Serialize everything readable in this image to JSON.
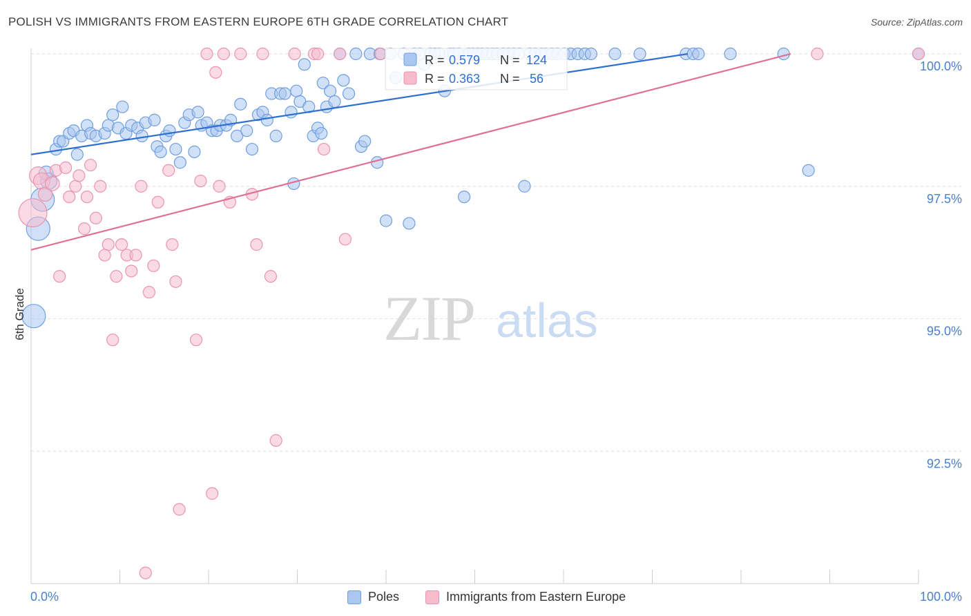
{
  "title": "POLISH VS IMMIGRANTS FROM EASTERN EUROPE 6TH GRADE CORRELATION CHART",
  "source": "Source: ZipAtlas.com",
  "watermark": {
    "zip": "ZIP",
    "atlas": "atlas"
  },
  "colors": {
    "blue_fill": "#a9c7f0",
    "blue_stroke": "#6f9ee0",
    "blue_line": "#2f6fd0",
    "pink_fill": "#f6bccd",
    "pink_stroke": "#ec93ad",
    "pink_line": "#e06f96",
    "tick_label": "#4a7fd0",
    "grid": "#dddddd"
  },
  "stats_legend": [
    {
      "r_label": "R =",
      "r_value": "0.579",
      "n_label": "N =",
      "n_value": "124"
    },
    {
      "r_label": "R =",
      "r_value": "0.363",
      "n_label": "N =",
      "n_value": " 56"
    }
  ],
  "chart_data": {
    "type": "scatter",
    "title": "POLISH VS IMMIGRANTS FROM EASTERN EUROPE 6TH GRADE CORRELATION CHART",
    "xlabel": "",
    "ylabel": "6th Grade",
    "xlim": [
      0,
      100
    ],
    "ylim": [
      90.0,
      100.2
    ],
    "x_tick_labels": [
      "0.0%",
      "100.0%"
    ],
    "y_ticks": [
      92.5,
      95.0,
      97.5,
      100.0
    ],
    "y_tick_labels": [
      "92.5%",
      "95.0%",
      "97.5%",
      "100.0%"
    ],
    "grid": "horizontal dashed",
    "legend_position": "top-center",
    "series": [
      {
        "name": "Poles",
        "trend": [
          [
            0,
            98.1
          ],
          [
            74,
            100.0
          ]
        ],
        "points": [
          [
            0.3,
            95.05,
            2
          ],
          [
            0.8,
            96.7,
            2
          ],
          [
            1.3,
            97.25,
            2
          ],
          [
            2.0,
            97.6,
            1.4
          ],
          [
            1.7,
            97.75,
            1.2
          ],
          [
            2.8,
            98.2,
            1
          ],
          [
            3.2,
            98.35,
            1
          ],
          [
            3.6,
            98.35,
            1
          ],
          [
            4.3,
            98.5,
            1
          ],
          [
            4.8,
            98.55,
            1
          ],
          [
            5.2,
            98.1,
            1
          ],
          [
            5.7,
            98.45,
            1
          ],
          [
            6.3,
            98.65,
            1
          ],
          [
            6.7,
            98.5,
            1
          ],
          [
            7.3,
            98.45,
            1
          ],
          [
            8.3,
            98.5,
            1
          ],
          [
            8.7,
            98.65,
            1
          ],
          [
            9.2,
            98.85,
            1
          ],
          [
            9.8,
            98.6,
            1
          ],
          [
            10.3,
            99.0,
            1
          ],
          [
            10.7,
            98.5,
            1
          ],
          [
            11.3,
            98.65,
            1
          ],
          [
            12.0,
            98.6,
            1
          ],
          [
            12.5,
            98.45,
            1
          ],
          [
            12.9,
            98.7,
            1
          ],
          [
            13.9,
            98.75,
            1
          ],
          [
            14.2,
            98.25,
            1
          ],
          [
            14.6,
            98.15,
            1
          ],
          [
            15.2,
            98.45,
            1
          ],
          [
            15.6,
            98.55,
            1
          ],
          [
            16.3,
            98.2,
            1
          ],
          [
            16.8,
            97.95,
            1
          ],
          [
            17.3,
            98.7,
            1
          ],
          [
            17.8,
            98.85,
            1
          ],
          [
            18.4,
            98.15,
            1
          ],
          [
            18.8,
            98.9,
            1
          ],
          [
            19.2,
            98.65,
            1
          ],
          [
            19.8,
            98.7,
            1
          ],
          [
            20.4,
            98.55,
            1
          ],
          [
            20.9,
            98.55,
            1
          ],
          [
            21.3,
            98.65,
            1
          ],
          [
            22.0,
            98.65,
            1
          ],
          [
            22.5,
            98.75,
            1
          ],
          [
            23.2,
            98.45,
            1
          ],
          [
            23.6,
            99.05,
            1
          ],
          [
            24.3,
            98.55,
            1
          ],
          [
            24.9,
            98.2,
            1
          ],
          [
            25.6,
            98.85,
            1
          ],
          [
            26.1,
            98.9,
            1
          ],
          [
            26.6,
            98.75,
            1
          ],
          [
            27.1,
            99.25,
            1
          ],
          [
            27.6,
            98.45,
            1
          ],
          [
            28.1,
            99.25,
            1
          ],
          [
            28.6,
            99.25,
            1
          ],
          [
            29.3,
            98.9,
            1
          ],
          [
            29.6,
            97.55,
            1
          ],
          [
            29.9,
            99.3,
            1
          ],
          [
            30.3,
            99.1,
            1
          ],
          [
            30.8,
            99.8,
            1
          ],
          [
            31.3,
            99.0,
            1
          ],
          [
            31.8,
            98.45,
            1
          ],
          [
            32.3,
            98.6,
            1
          ],
          [
            32.7,
            98.5,
            1
          ],
          [
            32.9,
            99.45,
            1
          ],
          [
            33.3,
            99.0,
            1
          ],
          [
            33.7,
            99.3,
            1
          ],
          [
            34.2,
            99.1,
            1
          ],
          [
            34.8,
            100.0,
            1
          ],
          [
            35.2,
            99.5,
            1
          ],
          [
            35.8,
            99.25,
            1
          ],
          [
            36.6,
            100.0,
            1
          ],
          [
            37.2,
            98.25,
            1
          ],
          [
            37.6,
            98.35,
            1
          ],
          [
            38.2,
            100.0,
            1
          ],
          [
            39.0,
            97.95,
            1
          ],
          [
            39.3,
            100.0,
            1
          ],
          [
            40.0,
            96.85,
            1
          ],
          [
            40.5,
            100.0,
            1
          ],
          [
            41.1,
            99.55,
            1
          ],
          [
            42.0,
            100.0,
            1
          ],
          [
            42.6,
            96.8,
            1
          ],
          [
            43.2,
            100.0,
            1
          ],
          [
            43.8,
            100.0,
            1
          ],
          [
            44.3,
            99.8,
            1
          ],
          [
            45.0,
            100.0,
            1
          ],
          [
            45.5,
            100.0,
            1
          ],
          [
            46.0,
            100.0,
            1
          ],
          [
            46.6,
            99.3,
            1
          ],
          [
            47.2,
            100.0,
            1
          ],
          [
            47.6,
            100.0,
            1
          ],
          [
            48.2,
            100.0,
            1
          ],
          [
            48.8,
            97.3,
            1
          ],
          [
            49.3,
            100.0,
            1
          ],
          [
            49.8,
            100.0,
            1
          ],
          [
            50.3,
            100.0,
            1
          ],
          [
            50.8,
            100.0,
            1
          ],
          [
            51.4,
            100.0,
            1
          ],
          [
            52.0,
            100.0,
            1
          ],
          [
            52.5,
            100.0,
            1
          ],
          [
            53.2,
            100.0,
            1
          ],
          [
            53.8,
            100.0,
            1
          ],
          [
            54.4,
            100.0,
            1
          ],
          [
            55.0,
            100.0,
            1
          ],
          [
            55.6,
            97.5,
            1
          ],
          [
            56.2,
            100.0,
            1
          ],
          [
            56.8,
            100.0,
            1
          ],
          [
            57.5,
            100.0,
            1
          ],
          [
            58.0,
            100.0,
            1
          ],
          [
            58.7,
            100.0,
            1
          ],
          [
            59.3,
            100.0,
            1
          ],
          [
            60.1,
            100.0,
            1
          ],
          [
            60.8,
            100.0,
            1
          ],
          [
            61.6,
            100.0,
            1
          ],
          [
            62.4,
            100.0,
            1
          ],
          [
            63.1,
            100.0,
            1
          ],
          [
            65.8,
            100.0,
            1
          ],
          [
            68.6,
            100.0,
            1
          ],
          [
            73.8,
            100.0,
            1
          ],
          [
            74.6,
            100.0,
            1
          ],
          [
            75.2,
            100.0,
            1
          ],
          [
            78.8,
            100.0,
            1
          ],
          [
            84.8,
            100.0,
            1
          ],
          [
            87.6,
            97.8,
            1
          ],
          [
            100,
            100.0,
            1
          ]
        ]
      },
      {
        "name": "Immigrants from Eastern Europe",
        "trend": [
          [
            0,
            96.3
          ],
          [
            85.6,
            100.0
          ]
        ],
        "points": [
          [
            0.2,
            97.0,
            2.4
          ],
          [
            0.8,
            97.7,
            1.5
          ],
          [
            1.2,
            97.6,
            1.4
          ],
          [
            1.6,
            97.35,
            1.2
          ],
          [
            2.4,
            97.55,
            1.2
          ],
          [
            2.8,
            97.8,
            1
          ],
          [
            3.2,
            95.8,
            1
          ],
          [
            3.9,
            97.85,
            1
          ],
          [
            4.3,
            97.3,
            1
          ],
          [
            5.0,
            97.5,
            1
          ],
          [
            5.4,
            97.7,
            1
          ],
          [
            6.0,
            96.7,
            1
          ],
          [
            6.3,
            97.3,
            1
          ],
          [
            6.7,
            97.9,
            1
          ],
          [
            7.3,
            96.9,
            1
          ],
          [
            7.8,
            97.5,
            1
          ],
          [
            8.3,
            96.2,
            1
          ],
          [
            8.7,
            96.4,
            1
          ],
          [
            9.2,
            94.6,
            1
          ],
          [
            9.6,
            95.8,
            1
          ],
          [
            10.2,
            96.4,
            1
          ],
          [
            10.8,
            96.2,
            1
          ],
          [
            11.3,
            95.9,
            1
          ],
          [
            11.8,
            96.2,
            1
          ],
          [
            12.4,
            97.5,
            1
          ],
          [
            12.9,
            90.2,
            1
          ],
          [
            13.3,
            95.5,
            1
          ],
          [
            13.8,
            96.0,
            1
          ],
          [
            14.3,
            97.2,
            1
          ],
          [
            15.5,
            97.8,
            1
          ],
          [
            15.9,
            96.4,
            1
          ],
          [
            16.3,
            95.7,
            1
          ],
          [
            16.7,
            91.4,
            1
          ],
          [
            18.6,
            94.6,
            1
          ],
          [
            19.1,
            97.6,
            1
          ],
          [
            19.8,
            100.0,
            1
          ],
          [
            20.4,
            91.7,
            1
          ],
          [
            20.8,
            99.65,
            1
          ],
          [
            21.2,
            97.5,
            1
          ],
          [
            21.7,
            100.0,
            1
          ],
          [
            22.4,
            97.2,
            1
          ],
          [
            23.6,
            100.0,
            1
          ],
          [
            24.9,
            97.35,
            1
          ],
          [
            25.4,
            96.4,
            1
          ],
          [
            26.1,
            100.0,
            1
          ],
          [
            27.0,
            95.8,
            1
          ],
          [
            27.6,
            92.7,
            1
          ],
          [
            29.7,
            100.0,
            1
          ],
          [
            31.9,
            100.0,
            1
          ],
          [
            32.3,
            100.0,
            1
          ],
          [
            33.0,
            98.2,
            1
          ],
          [
            34.8,
            100.0,
            1
          ],
          [
            35.4,
            96.5,
            1
          ],
          [
            39.4,
            100.0,
            1
          ],
          [
            88.6,
            100.0,
            1
          ],
          [
            100,
            100.0,
            1
          ]
        ]
      }
    ]
  }
}
